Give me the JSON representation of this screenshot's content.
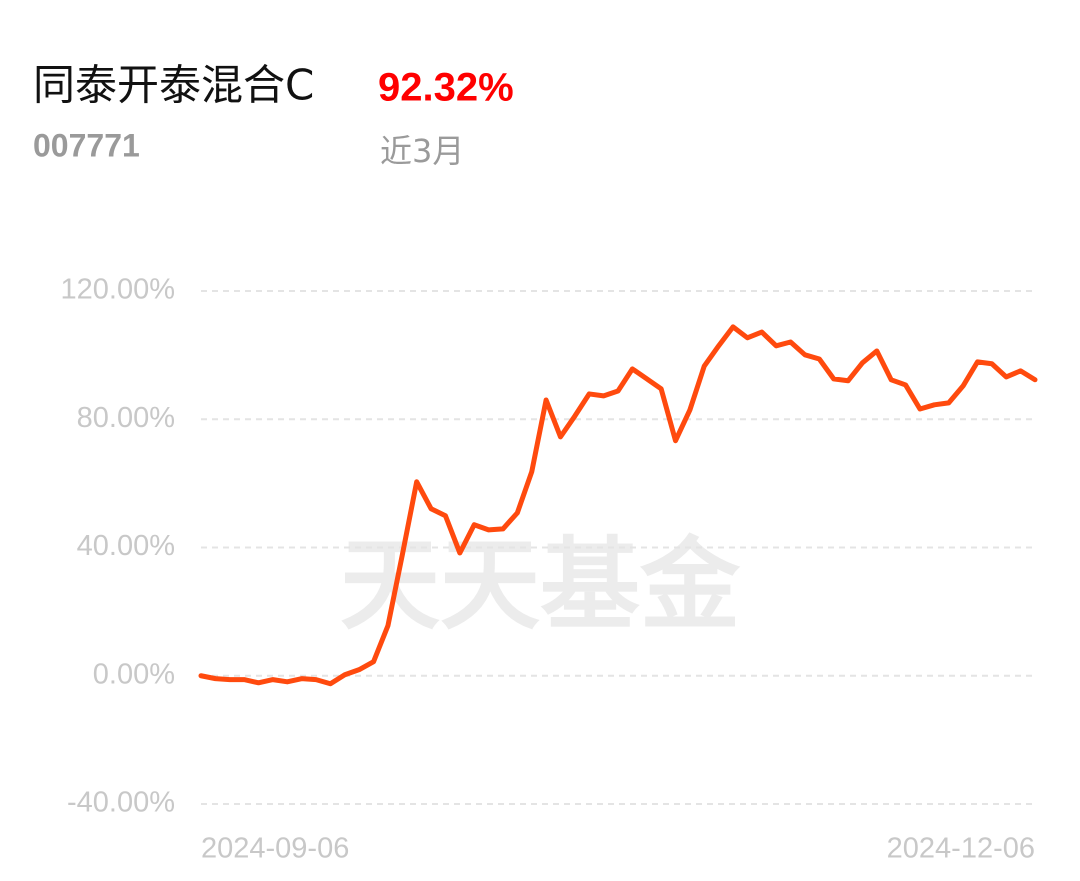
{
  "fund": {
    "name": "同泰开泰混合C",
    "code": "007771",
    "return": "92.32%",
    "period": "近3月"
  },
  "chart_data": {
    "type": "line",
    "watermark": "天天基金",
    "categories": [
      "2024-09-06",
      null,
      null,
      null,
      null,
      null,
      null,
      null,
      null,
      null,
      null,
      null,
      null,
      null,
      null,
      null,
      null,
      null,
      null,
      null,
      null,
      null,
      null,
      null,
      null,
      null,
      null,
      null,
      null,
      null,
      null,
      null,
      null,
      null,
      null,
      null,
      null,
      null,
      null,
      null,
      null,
      null,
      null,
      null,
      null,
      null,
      null,
      null,
      null,
      null,
      null,
      null,
      null,
      null,
      null,
      null,
      null,
      null,
      "2024-12-06"
    ],
    "series": [
      {
        "name": "同泰开泰混合C",
        "color": "#ff4a0e",
        "values": [
          0,
          -0.9,
          -1.2,
          -1.2,
          -2.2,
          -1.2,
          -1.9,
          -0.9,
          -1.2,
          -2.5,
          0.3,
          1.9,
          4.4,
          15.6,
          37.7,
          60.5,
          52.1,
          49.9,
          38.3,
          47.1,
          45.5,
          45.8,
          50.8,
          63.6,
          86.0,
          74.5,
          81.0,
          87.9,
          87.3,
          88.8,
          95.7,
          92.6,
          89.5,
          73.3,
          82.9,
          96.6,
          102.9,
          108.8,
          105.4,
          107.2,
          102.9,
          104.1,
          100.1,
          98.8,
          92.6,
          92.0,
          97.6,
          101.3,
          92.3,
          90.7,
          83.2,
          84.5,
          85.1,
          90.4,
          97.9,
          97.3,
          93.2,
          95.1,
          92.32
        ]
      }
    ],
    "ylim": [
      -40,
      120
    ],
    "yticks": [
      {
        "value": -40,
        "label": "-40.00%"
      },
      {
        "value": 0,
        "label": "0.00%"
      },
      {
        "value": 40,
        "label": "40.00%"
      },
      {
        "value": 80,
        "label": "80.00%"
      },
      {
        "value": 120,
        "label": "120.00%"
      }
    ],
    "grid": true
  }
}
